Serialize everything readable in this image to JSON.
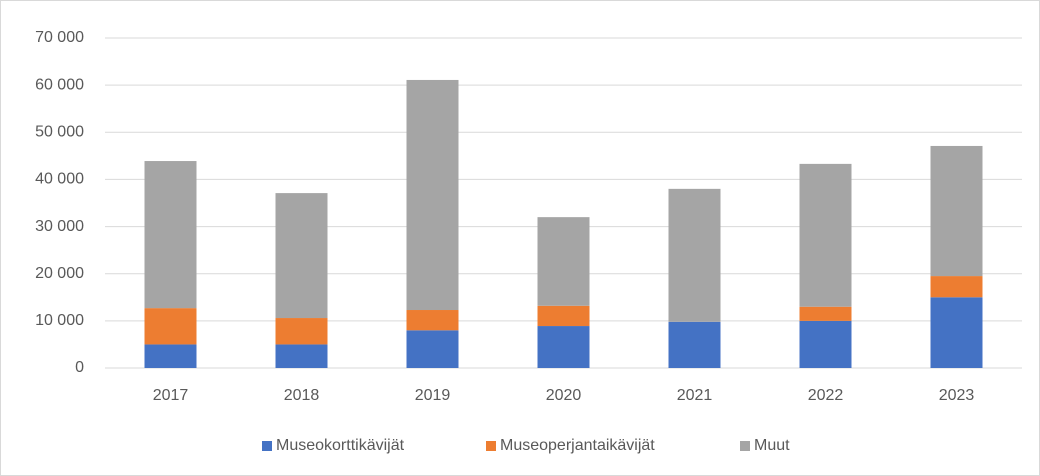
{
  "chart_data": {
    "type": "stacked_bar",
    "categories": [
      "2017",
      "2018",
      "2019",
      "2020",
      "2021",
      "2022",
      "2023"
    ],
    "series": [
      {
        "name": "Museokorttikävijät",
        "color": "#4472c4",
        "values": [
          5000,
          5000,
          8000,
          8900,
          9800,
          10000,
          15000
        ]
      },
      {
        "name": "Museoperjantaikävijät",
        "color": "#ed7d31",
        "values": [
          7700,
          5600,
          4300,
          4300,
          0,
          3000,
          4500
        ]
      },
      {
        "name": "Muut",
        "color": "#a5a5a5",
        "values": [
          31200,
          26500,
          48800,
          18800,
          28200,
          30300,
          27600
        ]
      }
    ],
    "ylim": [
      0,
      70000
    ],
    "yticks": [
      0,
      {
        "value": 10000,
        "label": "10 000"
      },
      {
        "value": 20000,
        "label": "20 000"
      },
      {
        "value": 30000,
        "label": "30 000"
      },
      {
        "value": 40000,
        "label": "40 000"
      },
      {
        "value": 50000,
        "label": "50 000"
      },
      {
        "value": 60000,
        "label": "60 000"
      },
      {
        "value": 70000,
        "label": "70 000"
      }
    ],
    "grid": true,
    "legend": "bottom"
  }
}
